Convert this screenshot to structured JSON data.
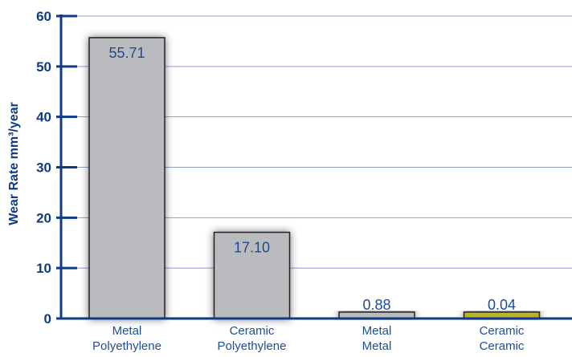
{
  "chart_data": {
    "type": "bar",
    "title": "",
    "xlabel": "",
    "ylabel": "Wear Rate mm³/year",
    "ylim": [
      0,
      60
    ],
    "yticks": [
      0,
      10,
      20,
      30,
      40,
      50,
      60
    ],
    "grid": true,
    "categories": [
      [
        "Metal",
        "Polyethylene"
      ],
      [
        "Ceramic",
        "Polyethylene"
      ],
      [
        "Metal",
        "Metal"
      ],
      [
        "Ceramic",
        "Ceramic"
      ]
    ],
    "values": [
      55.71,
      17.1,
      0.88,
      0.04
    ],
    "value_labels": [
      "55.71",
      "17.10",
      "0.88",
      "0.04"
    ],
    "bar_colors": [
      "#b9bbbf",
      "#b9bbbf",
      "#b9bbbf",
      "#b9b234"
    ],
    "colors": {
      "axis": "#0d3b86",
      "grid": "#8f9fc4",
      "text": "#1e4a93"
    }
  }
}
